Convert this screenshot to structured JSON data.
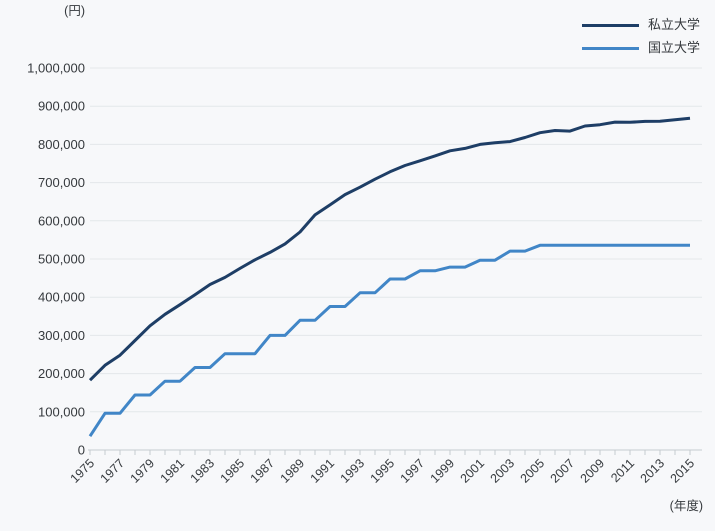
{
  "chart_data": {
    "type": "line",
    "title": "",
    "y_axis_unit": "(円)",
    "x_axis_unit": "(年度)",
    "ylim": [
      0,
      1000000
    ],
    "ytick_step": 100000,
    "ytick_labels": [
      "0",
      "100,000",
      "200,000",
      "300,000",
      "400,000",
      "500,000",
      "600,000",
      "700,000",
      "800,000",
      "900,000",
      "1,000,000"
    ],
    "xtick_labels": [
      "1975",
      "1977",
      "1979",
      "1981",
      "1983",
      "1985",
      "1987",
      "1989",
      "1991",
      "1993",
      "1995",
      "1997",
      "1999",
      "2001",
      "2003",
      "2005",
      "2007",
      "2009",
      "2011",
      "2013",
      "2015"
    ],
    "years": [
      1975,
      1976,
      1977,
      1978,
      1979,
      1980,
      1981,
      1982,
      1983,
      1984,
      1985,
      1986,
      1987,
      1988,
      1989,
      1990,
      1991,
      1992,
      1993,
      1994,
      1995,
      1996,
      1997,
      1998,
      1999,
      2000,
      2001,
      2002,
      2003,
      2004,
      2005,
      2006,
      2007,
      2008,
      2009,
      2010,
      2011,
      2012,
      2013,
      2014,
      2015
    ],
    "grid": true,
    "legend_position": "top-right",
    "series": [
      {
        "name": "私立大学",
        "color": "#1e3e66",
        "values": [
          182677,
          221844,
          248066,
          286568,
          325198,
          355156,
          380253,
          406261,
          433200,
          451722,
          475325,
          497826,
          517395,
          539591,
          570584,
          615486,
          641608,
          668460,
          688046,
          708847,
          728365,
          744733,
          757158,
          770024,
          783298,
          789659,
          799973,
          804367,
          807413,
          817952,
          830583,
          836297,
          834751,
          848178,
          851621,
          858265,
          857763,
          860266,
          860772,
          864384,
          868447
        ]
      },
      {
        "name": "国立大学",
        "color": "#4186c7",
        "values": [
          36000,
          96000,
          96000,
          144000,
          144000,
          180000,
          180000,
          216000,
          216000,
          252000,
          252000,
          252000,
          300000,
          300000,
          339600,
          339600,
          375600,
          375600,
          411600,
          411600,
          447600,
          447600,
          469200,
          469200,
          478800,
          478800,
          496800,
          496800,
          520800,
          520800,
          535800,
          535800,
          535800,
          535800,
          535800,
          535800,
          535800,
          535800,
          535800,
          535800,
          535800
        ]
      }
    ]
  }
}
